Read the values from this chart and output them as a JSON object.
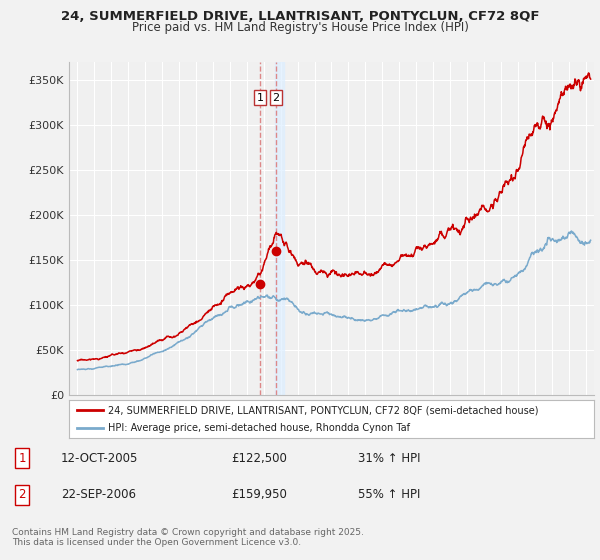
{
  "title1": "24, SUMMERFIELD DRIVE, LLANTRISANT, PONTYCLUN, CF72 8QF",
  "title2": "Price paid vs. HM Land Registry's House Price Index (HPI)",
  "ylabel_ticks": [
    "£0",
    "£50K",
    "£100K",
    "£150K",
    "£200K",
    "£250K",
    "£300K",
    "£350K"
  ],
  "ytick_values": [
    0,
    50000,
    100000,
    150000,
    200000,
    250000,
    300000,
    350000
  ],
  "ylim": [
    0,
    370000
  ],
  "xlim_years": [
    1994.5,
    2025.5
  ],
  "purchase1_year": 2005.79,
  "purchase1_price": 122500,
  "purchase2_year": 2006.72,
  "purchase2_price": 159950,
  "legend_line1": "24, SUMMERFIELD DRIVE, LLANTRISANT, PONTYCLUN, CF72 8QF (semi-detached house)",
  "legend_line2": "HPI: Average price, semi-detached house, Rhondda Cynon Taf",
  "footnote": "Contains HM Land Registry data © Crown copyright and database right 2025.\nThis data is licensed under the Open Government Licence v3.0.",
  "color_red": "#cc0000",
  "color_blue": "#7aaacc",
  "color_vline": "#dd8888",
  "color_shade": "#ddeeff",
  "background_color": "#f0f0f0",
  "grid_color": "#ffffff",
  "table_row1": [
    "1",
    "12-OCT-2005",
    "£122,500",
    "31% ↑ HPI"
  ],
  "table_row2": [
    "2",
    "22-SEP-2006",
    "£159,950",
    "55% ↑ HPI"
  ]
}
